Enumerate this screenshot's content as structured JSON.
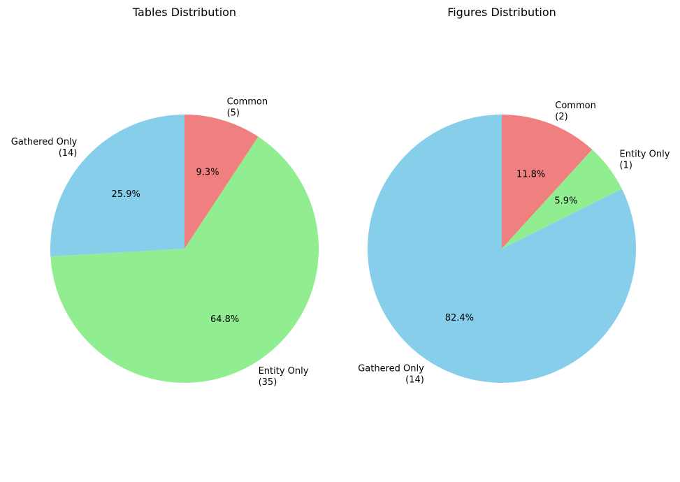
{
  "chart_data": [
    {
      "type": "pie",
      "title": "Tables Distribution",
      "start_angle_deg": 90,
      "direction": "clockwise",
      "slices": [
        {
          "label": "Common",
          "count": "(5)",
          "value": 5,
          "percent": "9.3%",
          "color": "#F08080"
        },
        {
          "label": "Entity Only",
          "count": "(35)",
          "value": 35,
          "percent": "64.8%",
          "color": "#90EE90"
        },
        {
          "label": "Gathered Only",
          "count": "(14)",
          "value": 14,
          "percent": "25.9%",
          "color": "#87CEEB"
        }
      ]
    },
    {
      "type": "pie",
      "title": "Figures Distribution",
      "start_angle_deg": 90,
      "direction": "clockwise",
      "slices": [
        {
          "label": "Common",
          "count": "(2)",
          "value": 2,
          "percent": "11.8%",
          "color": "#F08080"
        },
        {
          "label": "Entity Only",
          "count": "(1)",
          "value": 1,
          "percent": "5.9%",
          "color": "#90EE90"
        },
        {
          "label": "Gathered Only",
          "count": "(14)",
          "value": 14,
          "percent": "82.4%",
          "color": "#87CEEB"
        }
      ]
    }
  ]
}
